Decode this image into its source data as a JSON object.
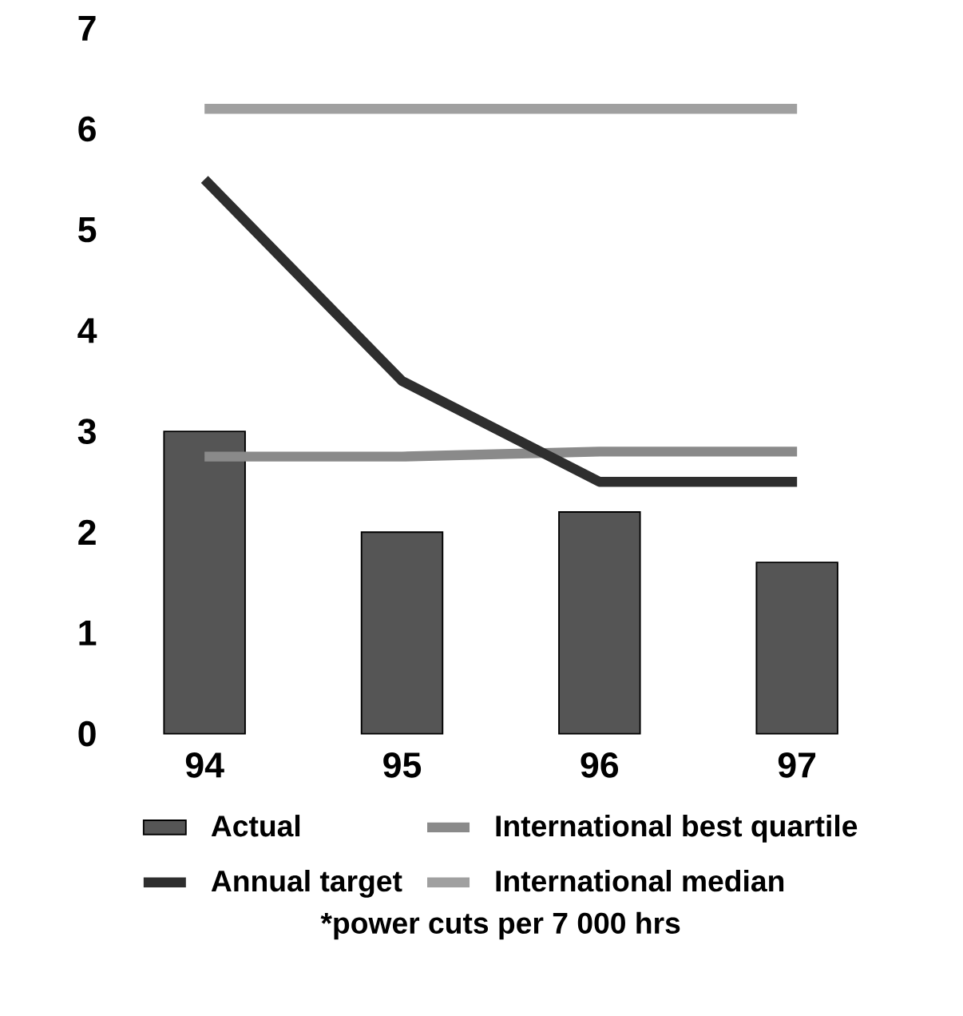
{
  "chart_data": {
    "type": "bar",
    "categories": [
      "94",
      "95",
      "96",
      "97"
    ],
    "series": [
      {
        "name": "Actual",
        "color": "#555555",
        "values": [
          3.0,
          2.0,
          2.2,
          1.7
        ]
      },
      {
        "name": "International best quartile",
        "type": "line",
        "color": "#8a8a8a",
        "values": [
          2.75,
          2.75,
          2.8,
          2.8
        ]
      },
      {
        "name": "Annual target",
        "type": "line",
        "color": "#2e2e2e",
        "values": [
          5.5,
          3.5,
          2.5,
          2.5
        ]
      },
      {
        "name": "International median",
        "type": "line",
        "color": "#a0a0a0",
        "values": [
          6.2,
          6.2,
          6.2,
          6.2
        ]
      }
    ],
    "ylim": [
      0,
      7
    ],
    "yticks": [
      0,
      1,
      2,
      3,
      4,
      5,
      6,
      7
    ],
    "grid": false,
    "legend": "bottom",
    "marker": "none",
    "line_style": "solid",
    "annotations": [
      "*power cuts per 7 000 hrs"
    ]
  }
}
